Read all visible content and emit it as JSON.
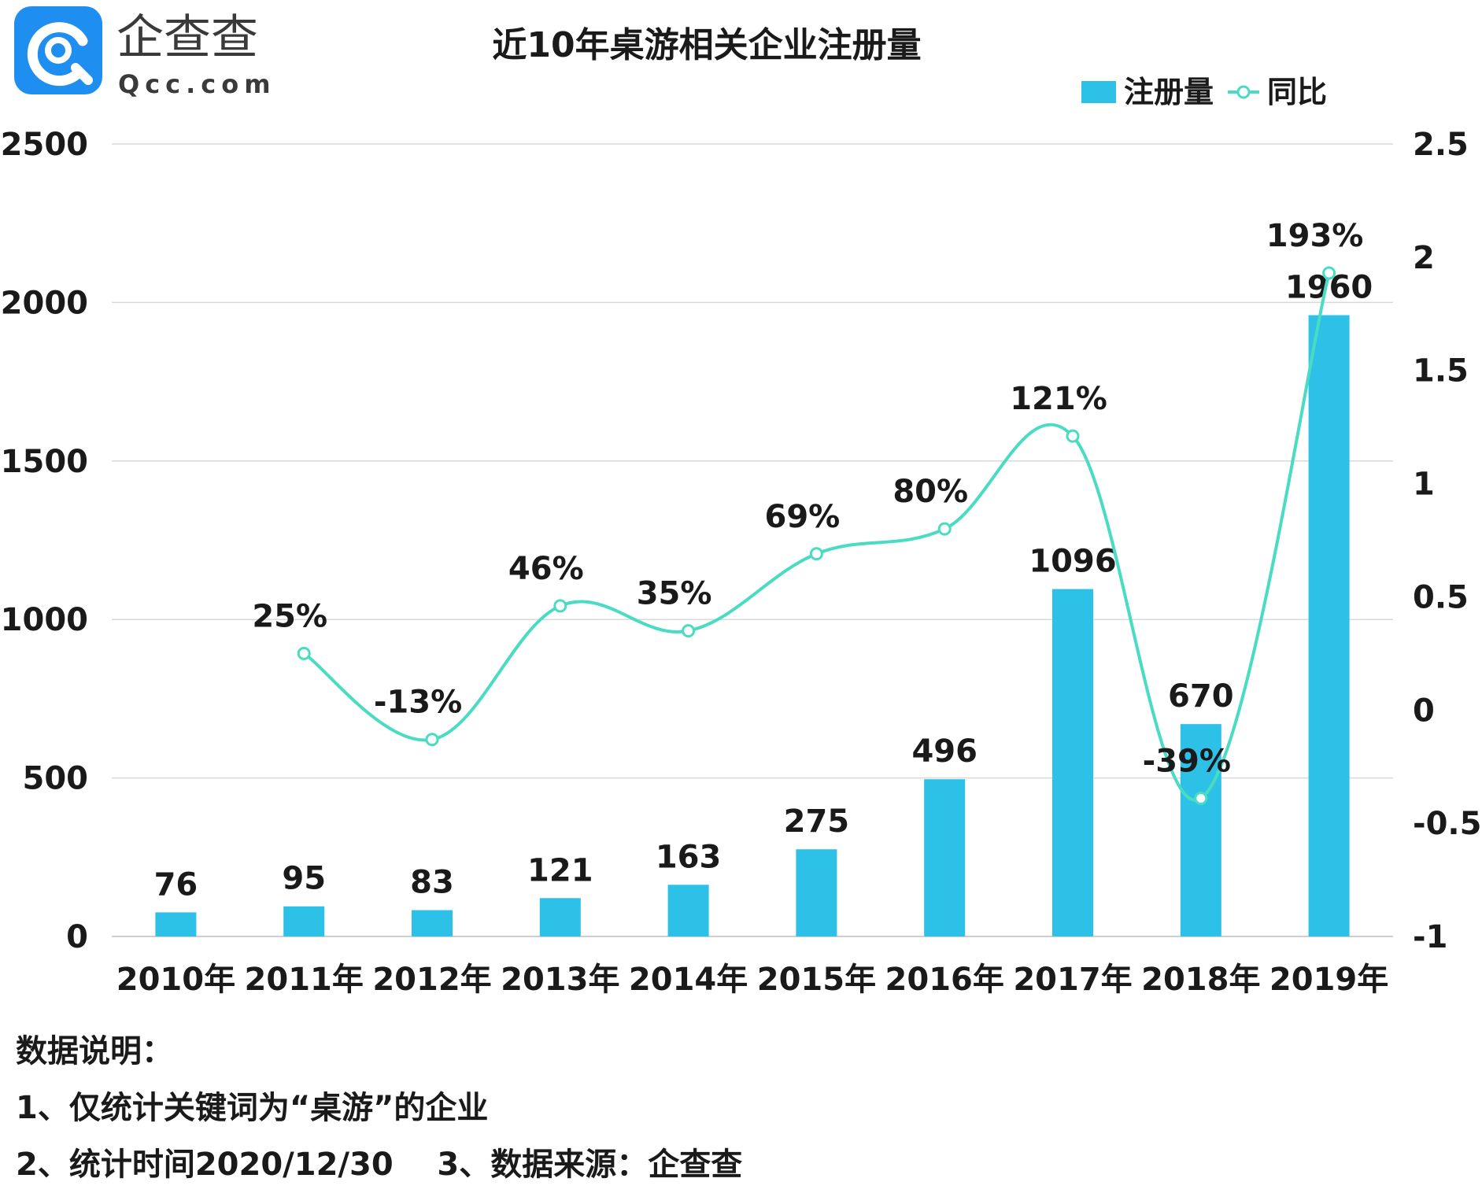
{
  "brand": {
    "name": "企查查",
    "domain": "Qcc.com",
    "logo_color": "#1E8EF0"
  },
  "title": "近10年桌游相关企业注册量",
  "legend": {
    "bar_label": "注册量",
    "line_label": "同比"
  },
  "colors": {
    "bar": "#2EC1E8",
    "line": "#4ADBC3",
    "grid": "#D9D9D9"
  },
  "chart_data": {
    "type": "bar",
    "categories": [
      "2010年",
      "2011年",
      "2012年",
      "2013年",
      "2014年",
      "2015年",
      "2016年",
      "2017年",
      "2018年",
      "2019年"
    ],
    "series": [
      {
        "name": "注册量",
        "type": "bar",
        "axis": "left",
        "values": [
          76,
          95,
          83,
          121,
          163,
          275,
          496,
          1096,
          670,
          1960
        ],
        "labels": [
          "76",
          "95",
          "83",
          "121",
          "163",
          "275",
          "496",
          "1096",
          "670",
          "1960"
        ]
      },
      {
        "name": "同比",
        "type": "line",
        "axis": "right",
        "values": [
          null,
          0.25,
          -0.13,
          0.46,
          0.35,
          0.69,
          0.8,
          1.21,
          -0.39,
          1.93
        ],
        "labels": [
          "",
          "25%",
          "-13%",
          "46%",
          "35%",
          "69%",
          "80%",
          "121%",
          "-39%",
          "193%"
        ]
      }
    ],
    "y_left": {
      "min": 0,
      "max": 2500,
      "ticks": [
        "0",
        "500",
        "1000",
        "1500",
        "2000",
        "2500"
      ]
    },
    "y_right": {
      "min": -1,
      "max": 2.5,
      "ticks": [
        "-1",
        "-0.5",
        "0",
        "0.5",
        "1",
        "1.5",
        "2",
        "2.5"
      ]
    },
    "grid": true,
    "legend_position": "top-right"
  },
  "notes": {
    "heading": "数据说明：",
    "line1": "1、仅统计关键词为“桌游”的企业",
    "line2": "2、统计时间2020/12/30    3、数据来源：企查查"
  }
}
